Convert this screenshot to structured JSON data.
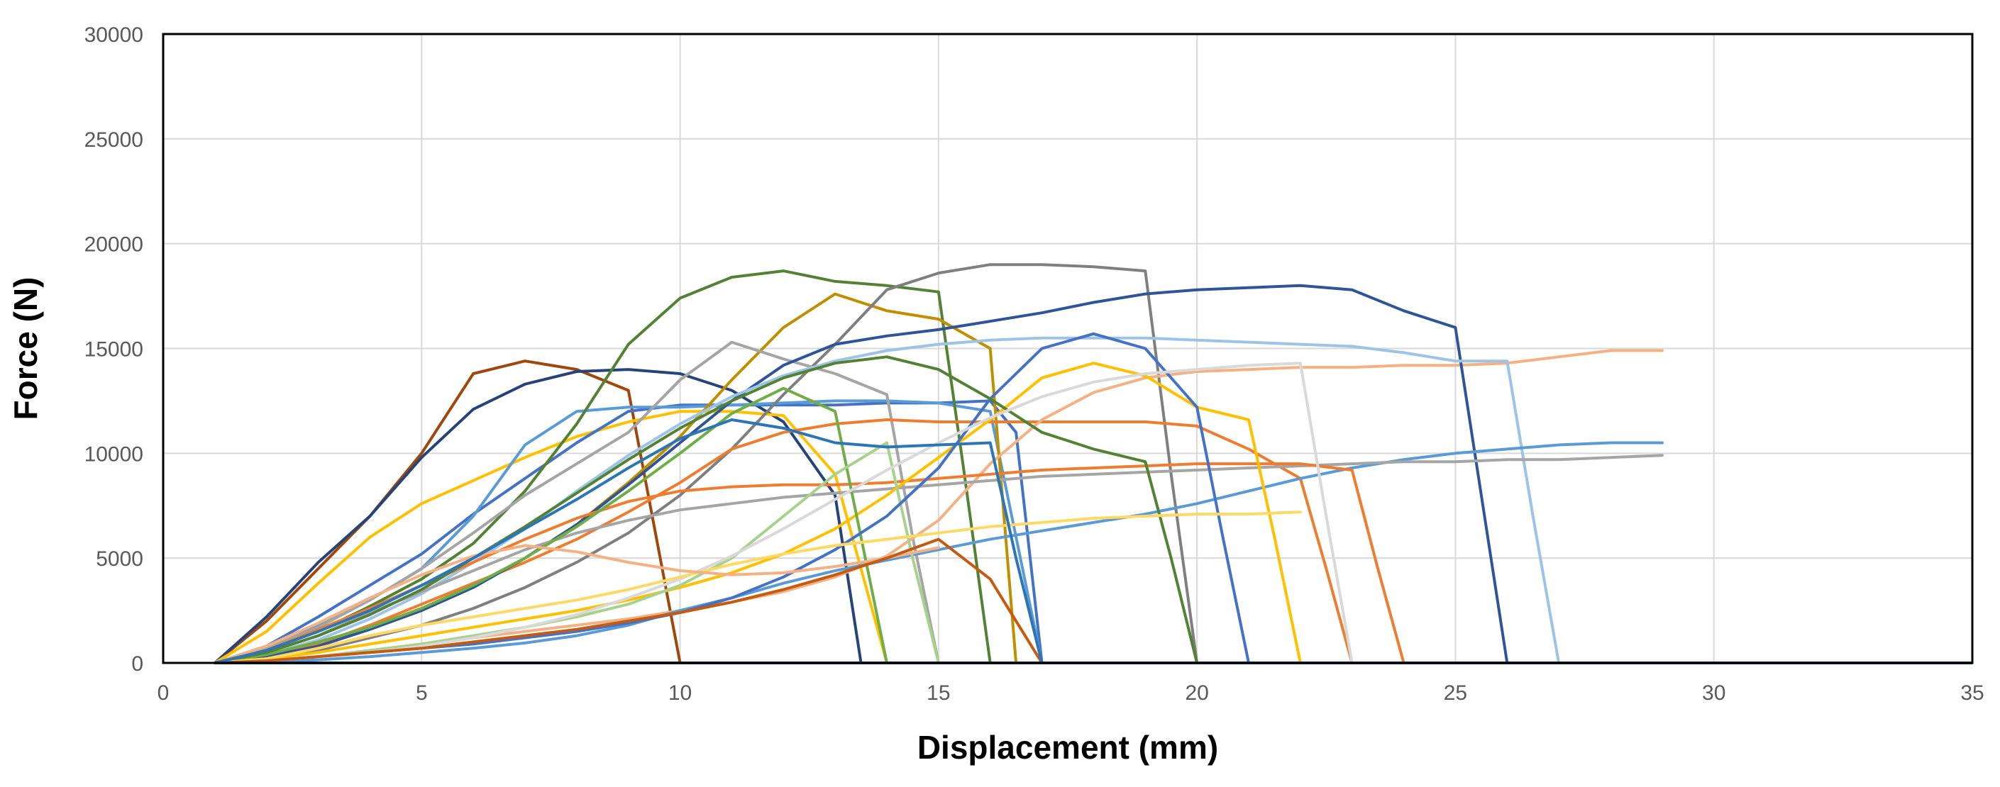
{
  "chart_data": {
    "type": "line",
    "title": "",
    "xlabel": "Displacement (mm)",
    "ylabel": "Force (N)",
    "xlim": [
      0,
      35
    ],
    "ylim": [
      0,
      30000
    ],
    "xticks": [
      0,
      5,
      10,
      15,
      20,
      25,
      30,
      35
    ],
    "yticks": [
      0,
      5000,
      10000,
      15000,
      20000,
      25000,
      30000
    ],
    "grid": true,
    "legend": "none",
    "series": [
      {
        "color": "#9e480e",
        "x": [
          1,
          2,
          3,
          4,
          5,
          6,
          7,
          8,
          9,
          10
        ],
        "y": [
          0,
          2000,
          4500,
          7000,
          10000,
          13800,
          14400,
          14000,
          13000,
          0
        ]
      },
      {
        "color": "#264478",
        "x": [
          1,
          2,
          3,
          4,
          5,
          6,
          7,
          8,
          9,
          10,
          11,
          12,
          13,
          13.5
        ],
        "y": [
          0,
          2200,
          4800,
          7000,
          9800,
          12100,
          13300,
          13900,
          14000,
          13800,
          13000,
          11500,
          8000,
          0
        ]
      },
      {
        "color": "#ffc000",
        "x": [
          1,
          2,
          3,
          4,
          5,
          6,
          7,
          8,
          9,
          10,
          11,
          12,
          13,
          14
        ],
        "y": [
          0,
          1500,
          3800,
          6000,
          7600,
          8700,
          9800,
          10800,
          11500,
          12000,
          12000,
          11800,
          9000,
          0
        ]
      },
      {
        "color": "#4472c4",
        "x": [
          1,
          2,
          3,
          4,
          5,
          6,
          7,
          8,
          9,
          10,
          11,
          12,
          13,
          14,
          15,
          16,
          16.5,
          17
        ],
        "y": [
          0,
          800,
          2200,
          3700,
          5200,
          7100,
          8800,
          10500,
          12000,
          12300,
          12300,
          12300,
          12300,
          12400,
          12400,
          12500,
          11000,
          0
        ]
      },
      {
        "color": "#5b9bd5",
        "x": [
          1,
          2,
          3,
          4,
          5,
          6,
          7,
          8,
          9,
          10,
          11,
          12,
          13,
          14,
          15,
          16,
          17
        ],
        "y": [
          0,
          700,
          1800,
          3000,
          4500,
          7000,
          10400,
          12000,
          12200,
          12200,
          12300,
          12400,
          12500,
          12500,
          12400,
          12000,
          0
        ]
      },
      {
        "color": "#548235",
        "x": [
          1,
          2,
          3,
          4,
          5,
          6,
          7,
          8,
          9,
          10,
          11,
          12,
          13,
          14,
          15,
          15.5,
          16
        ],
        "y": [
          0,
          600,
          1500,
          2700,
          4000,
          5700,
          8200,
          11400,
          15200,
          17400,
          18400,
          18700,
          18200,
          18000,
          17700,
          9000,
          0
        ]
      },
      {
        "color": "#bf8f00",
        "x": [
          1,
          2,
          3,
          4,
          5,
          6,
          7,
          8,
          9,
          10,
          11,
          12,
          13,
          14,
          15,
          16,
          16.5
        ],
        "y": [
          0,
          300,
          900,
          1700,
          2600,
          3700,
          5000,
          6600,
          8600,
          10800,
          13500,
          16000,
          17600,
          16800,
          16400,
          15000,
          0
        ]
      },
      {
        "color": "#7f7f7f",
        "x": [
          1,
          2,
          3,
          4,
          5,
          6,
          7,
          8,
          9,
          10,
          11,
          12,
          13,
          14,
          15,
          16,
          17,
          18,
          19,
          19.5,
          20
        ],
        "y": [
          0,
          200,
          600,
          1200,
          1800,
          2600,
          3600,
          4800,
          6200,
          8000,
          10200,
          12800,
          15200,
          17800,
          18600,
          19000,
          19000,
          18900,
          18700,
          9000,
          0
        ]
      },
      {
        "color": "#a5a5a5",
        "x": [
          1,
          2,
          3,
          4,
          5,
          6,
          7,
          8,
          9,
          10,
          11,
          12,
          13,
          14,
          14.5,
          15
        ],
        "y": [
          0,
          700,
          1700,
          3000,
          4500,
          6200,
          8000,
          9500,
          11000,
          13500,
          15300,
          14500,
          13800,
          12800,
          6000,
          0
        ]
      },
      {
        "color": "#ed7d31",
        "x": [
          1,
          2,
          3,
          4,
          5,
          6,
          7,
          8,
          9,
          10,
          11,
          12,
          13,
          14,
          15,
          16,
          17,
          18,
          19,
          20,
          21,
          22,
          22.5,
          23
        ],
        "y": [
          0,
          300,
          900,
          1800,
          2800,
          3800,
          4800,
          5900,
          7200,
          8600,
          10200,
          11000,
          11400,
          11600,
          11500,
          11500,
          11500,
          11500,
          11500,
          11300,
          10200,
          8800,
          4500,
          0
        ]
      },
      {
        "color": "#f4b183",
        "x": [
          1,
          2,
          3,
          4,
          5,
          6,
          7,
          8,
          9,
          10,
          11,
          12,
          13,
          14,
          15,
          16,
          17,
          18,
          19,
          20,
          21,
          22,
          23,
          24,
          25,
          26,
          27,
          28,
          29
        ],
        "y": [
          0,
          100,
          300,
          600,
          900,
          1200,
          1500,
          1800,
          2100,
          2500,
          2900,
          3400,
          4100,
          5100,
          6800,
          9500,
          11600,
          12900,
          13600,
          13900,
          14000,
          14100,
          14100,
          14200,
          14200,
          14300,
          14600,
          14900,
          14900
        ]
      },
      {
        "color": "#2f5597",
        "x": [
          1,
          2,
          3,
          4,
          5,
          6,
          7,
          8,
          9,
          10,
          11,
          12,
          13,
          14,
          15,
          16,
          17,
          18,
          19,
          20,
          21,
          22,
          23,
          24,
          25,
          25.5,
          26
        ],
        "y": [
          0,
          300,
          800,
          1600,
          2500,
          3600,
          5000,
          6600,
          8500,
          10500,
          12500,
          14200,
          15200,
          15600,
          15900,
          16300,
          16700,
          17200,
          17600,
          17800,
          17900,
          18000,
          17800,
          16800,
          16000,
          8000,
          0
        ]
      },
      {
        "color": "#9dc3e6",
        "x": [
          1,
          2,
          3,
          4,
          5,
          6,
          7,
          8,
          9,
          10,
          11,
          12,
          13,
          14,
          15,
          16,
          17,
          18,
          19,
          20,
          21,
          22,
          23,
          24,
          25,
          26,
          26.5,
          27
        ],
        "y": [
          0,
          400,
          1100,
          2100,
          3300,
          4800,
          6400,
          8200,
          9900,
          11400,
          12700,
          13700,
          14400,
          14900,
          15200,
          15400,
          15500,
          15500,
          15500,
          15400,
          15300,
          15200,
          15100,
          14800,
          14400,
          14400,
          7000,
          0
        ]
      },
      {
        "color": "#5b9bd5",
        "x": [
          1,
          2,
          3,
          4,
          5,
          6,
          7,
          8,
          9,
          10,
          11,
          12,
          13,
          14,
          15,
          16,
          17,
          18,
          19,
          20,
          21,
          22,
          23,
          24,
          25,
          26,
          27,
          28,
          29
        ],
        "y": [
          0,
          50,
          150,
          300,
          500,
          700,
          950,
          1300,
          1800,
          2500,
          3100,
          3800,
          4400,
          4900,
          5400,
          5900,
          6300,
          6700,
          7100,
          7600,
          8200,
          8800,
          9300,
          9700,
          10000,
          10200,
          10400,
          10500,
          10500
        ]
      },
      {
        "color": "#a5a5a5",
        "x": [
          1,
          2,
          3,
          4,
          5,
          6,
          7,
          8,
          9,
          10,
          11,
          12,
          13,
          14,
          15,
          16,
          17,
          18,
          19,
          20,
          21,
          22,
          23,
          24,
          25,
          26,
          27,
          28,
          29
        ],
        "y": [
          0,
          500,
          1300,
          2400,
          3400,
          4400,
          5400,
          6200,
          6800,
          7300,
          7600,
          7900,
          8100,
          8300,
          8500,
          8700,
          8900,
          9000,
          9100,
          9200,
          9300,
          9400,
          9500,
          9600,
          9600,
          9700,
          9700,
          9800,
          9900
        ]
      },
      {
        "color": "#ed7d31",
        "x": [
          1,
          2,
          3,
          4,
          5,
          6,
          7,
          8,
          9,
          10,
          11,
          12,
          13,
          14,
          15,
          16,
          17,
          18,
          19,
          20,
          21,
          22,
          23,
          23.5,
          24
        ],
        "y": [
          0,
          600,
          1600,
          2600,
          3700,
          4800,
          5900,
          6900,
          7700,
          8200,
          8400,
          8500,
          8500,
          8600,
          8800,
          9000,
          9200,
          9300,
          9400,
          9500,
          9500,
          9500,
          9200,
          4500,
          0
        ]
      },
      {
        "color": "#ffc000",
        "x": [
          1,
          2,
          3,
          4,
          5,
          6,
          7,
          8,
          9,
          10,
          11,
          12,
          13,
          14,
          15,
          16,
          17,
          18,
          19,
          20,
          21,
          21.5,
          22
        ],
        "y": [
          0,
          200,
          500,
          900,
          1300,
          1700,
          2100,
          2500,
          3000,
          3600,
          4300,
          5200,
          6400,
          8000,
          9800,
          11600,
          13600,
          14300,
          13700,
          12200,
          11600,
          6000,
          0
        ]
      },
      {
        "color": "#70ad47",
        "x": [
          1,
          2,
          3,
          4,
          5,
          6,
          7,
          8,
          9,
          10,
          11,
          12,
          13,
          13.5,
          14
        ],
        "y": [
          0,
          400,
          1000,
          1700,
          2600,
          3700,
          5000,
          6500,
          8200,
          10000,
          11900,
          13100,
          12000,
          6000,
          0
        ]
      },
      {
        "color": "#a9d18e",
        "x": [
          1,
          2,
          3,
          4,
          5,
          6,
          7,
          8,
          9,
          10,
          11,
          12,
          13,
          14,
          14.5,
          15
        ],
        "y": [
          0,
          100,
          300,
          600,
          900,
          1300,
          1700,
          2200,
          2800,
          3700,
          5000,
          7000,
          9000,
          10500,
          5000,
          0
        ]
      },
      {
        "color": "#4472c4",
        "x": [
          1,
          2,
          3,
          4,
          5,
          6,
          7,
          8,
          9,
          10,
          11,
          12,
          13,
          14,
          15,
          16,
          17,
          18,
          19,
          20,
          20.5,
          21
        ],
        "y": [
          0,
          100,
          300,
          500,
          700,
          900,
          1200,
          1500,
          1900,
          2400,
          3100,
          4100,
          5400,
          7000,
          9300,
          12600,
          15000,
          15700,
          15000,
          12200,
          6000,
          0
        ]
      },
      {
        "color": "#548235",
        "x": [
          1,
          2,
          3,
          4,
          5,
          6,
          7,
          8,
          9,
          10,
          11,
          12,
          13,
          14,
          15,
          16,
          17,
          18,
          19,
          19.5,
          20
        ],
        "y": [
          0,
          500,
          1300,
          2300,
          3500,
          5000,
          6500,
          8100,
          9700,
          11200,
          12500,
          13600,
          14300,
          14600,
          14000,
          12600,
          11000,
          10200,
          9600,
          5000,
          0
        ]
      },
      {
        "color": "#d9d9d9",
        "x": [
          1,
          2,
          3,
          4,
          5,
          6,
          7,
          8,
          9,
          10,
          11,
          12,
          13,
          14,
          15,
          16,
          17,
          18,
          19,
          20,
          21,
          22,
          22.5,
          23
        ],
        "y": [
          0,
          100,
          300,
          500,
          800,
          1200,
          1700,
          2300,
          3100,
          4000,
          5100,
          6400,
          7800,
          9200,
          10500,
          11700,
          12700,
          13400,
          13800,
          14000,
          14200,
          14300,
          7000,
          0
        ]
      },
      {
        "color": "#ffd966",
        "x": [
          1,
          2,
          3,
          4,
          5,
          6,
          7,
          8,
          9,
          10,
          11,
          12,
          13,
          14,
          15,
          16,
          17,
          18,
          19,
          20,
          21,
          22
        ],
        "y": [
          0,
          200,
          700,
          1300,
          1800,
          2200,
          2600,
          3000,
          3500,
          4100,
          4700,
          5200,
          5600,
          5900,
          6200,
          6500,
          6700,
          6900,
          7000,
          7100,
          7100,
          7200
        ]
      },
      {
        "color": "#f4b183",
        "x": [
          1,
          2,
          3,
          4,
          5,
          6,
          7,
          8,
          9,
          10,
          11,
          12,
          13,
          14,
          15
        ],
        "y": [
          0,
          800,
          1900,
          3100,
          4200,
          5100,
          5600,
          5300,
          4800,
          4400,
          4200,
          4300,
          4600,
          5000,
          5500
        ]
      },
      {
        "color": "#c55a11",
        "x": [
          1,
          2,
          3,
          4,
          5,
          6,
          7,
          8,
          9,
          10,
          11,
          12,
          13,
          14,
          15,
          16,
          16.5,
          17
        ],
        "y": [
          0,
          100,
          300,
          500,
          700,
          1000,
          1300,
          1600,
          2000,
          2400,
          2900,
          3500,
          4200,
          5000,
          5900,
          4000,
          2000,
          0
        ]
      },
      {
        "color": "#2e75b6",
        "x": [
          1,
          2,
          3,
          4,
          5,
          6,
          7,
          8,
          9,
          10,
          11,
          12,
          13,
          14,
          15,
          16,
          16.5,
          17
        ],
        "y": [
          0,
          600,
          1500,
          2500,
          3700,
          5000,
          6400,
          7800,
          9300,
          10700,
          11600,
          11200,
          10500,
          10300,
          10400,
          10500,
          5000,
          0
        ]
      }
    ]
  }
}
